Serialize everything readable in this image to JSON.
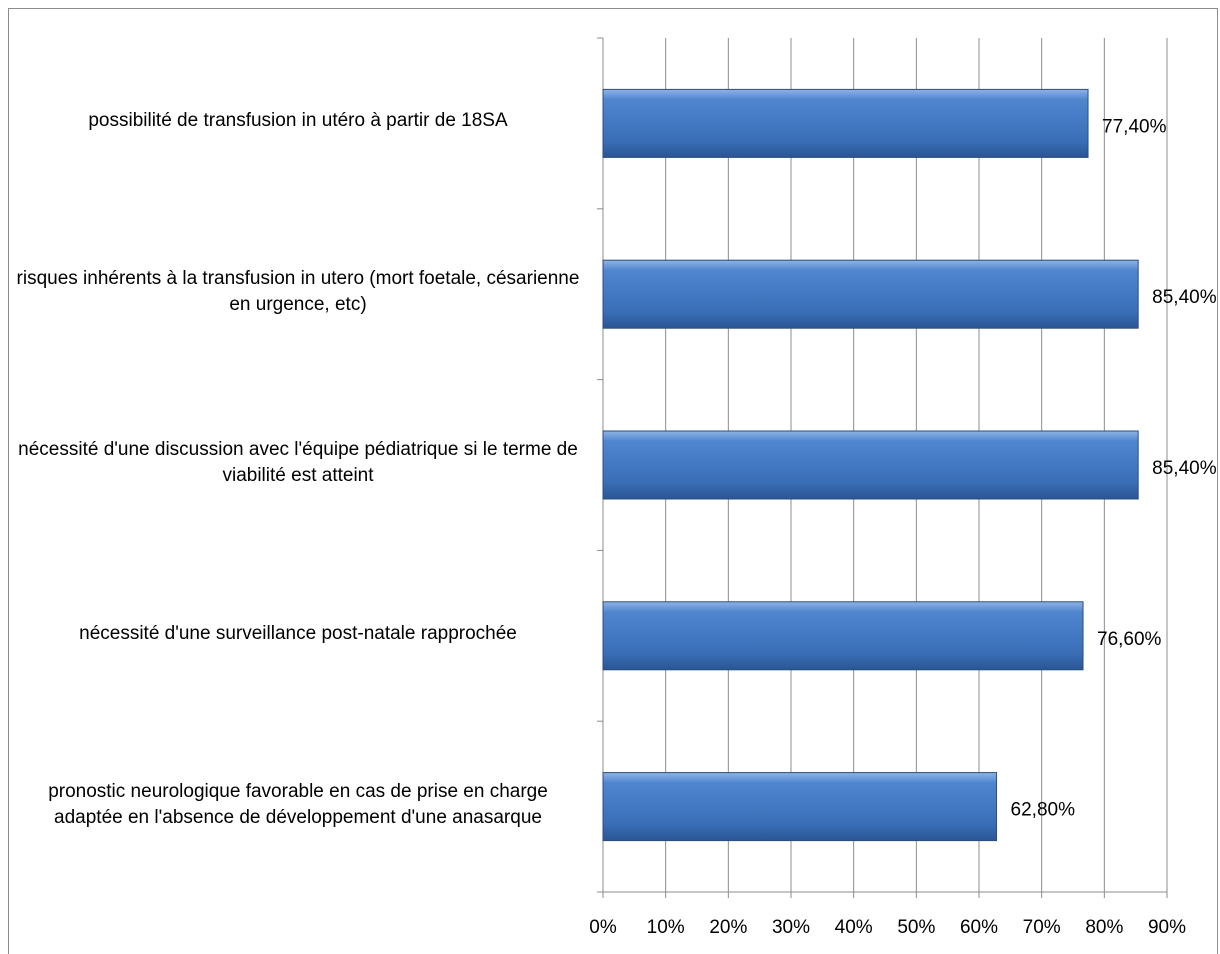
{
  "chart_data": {
    "type": "bar",
    "orientation": "horizontal",
    "categories": [
      "possibilité de transfusion in utéro à partir de 18SA",
      "risques inhérents à la transfusion in utero (mort foetale, césarienne en urgence, etc)",
      "nécessité d'une discussion avec l'équipe pédiatrique si le terme de viabilité est atteint",
      "nécessité d'une surveillance post-natale rapprochée",
      "pronostic neurologique favorable en cas de prise en charge adaptée en l'absence de développement d'une anasarque"
    ],
    "values": [
      77.4,
      85.4,
      85.4,
      76.6,
      62.8
    ],
    "value_labels": [
      "77,40%",
      "85,40%",
      "85,40%",
      "76,60%",
      "62,80%"
    ],
    "color": "#4f81bd",
    "xlim": [
      0,
      90
    ],
    "xticks": [
      {
        "value": 0,
        "label": "0%"
      },
      {
        "value": 10,
        "label": "10%"
      },
      {
        "value": 20,
        "label": "20%"
      },
      {
        "value": 30,
        "label": "30%"
      },
      {
        "value": 40,
        "label": "40%"
      },
      {
        "value": 50,
        "label": "50%"
      },
      {
        "value": 60,
        "label": "60%"
      },
      {
        "value": 70,
        "label": "70%"
      },
      {
        "value": 80,
        "label": "80%"
      },
      {
        "value": 90,
        "label": "90%"
      }
    ],
    "grid": true
  }
}
